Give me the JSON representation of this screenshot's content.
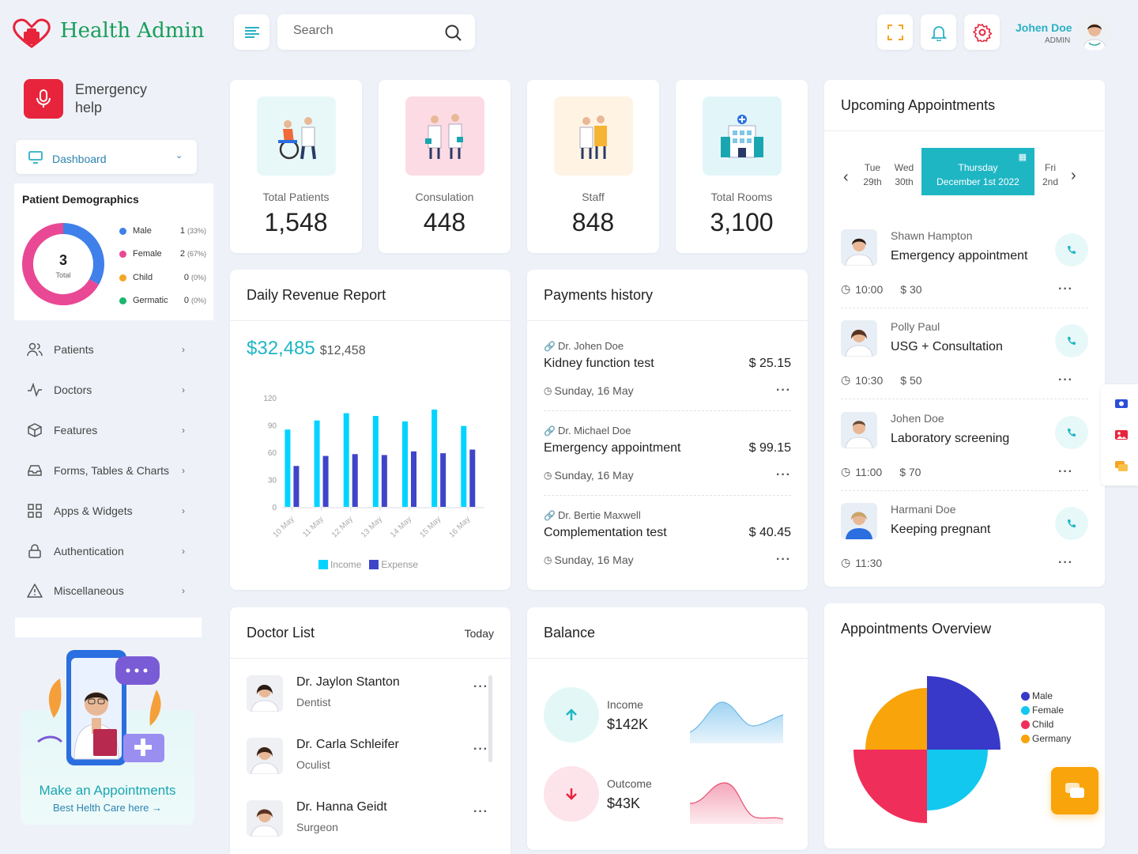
{
  "header": {
    "brand": "Health Admin",
    "search_placeholder": "Search",
    "user_name": "Johen Doe",
    "user_role": "ADMIN"
  },
  "sidebar": {
    "emergency": {
      "line1": "Emergency",
      "line2": "help"
    },
    "dashboard_label": "Dashboard",
    "demographics": {
      "title": "Patient Demographics",
      "total_value": "3",
      "total_label": "Total",
      "items": [
        {
          "name": "Male",
          "count": "1",
          "pct": "(33%)",
          "color": "#3f80ea"
        },
        {
          "name": "Female",
          "count": "2",
          "pct": "(67%)",
          "color": "#e94894"
        },
        {
          "name": "Child",
          "count": "0",
          "pct": "(0%)",
          "color": "#f5a524"
        },
        {
          "name": "Germatic",
          "count": "0",
          "pct": "(0%)",
          "color": "#1ab66f"
        }
      ],
      "share": [
        0.333,
        0.667
      ]
    },
    "nav": [
      "Patients",
      "Doctors",
      "Features",
      "Forms, Tables & Charts",
      "Apps & Widgets",
      "Authentication",
      "Miscellaneous"
    ],
    "promo": {
      "title": "Make an Appointments",
      "link": "Best Helth Care here"
    }
  },
  "stats": [
    {
      "label": "Total Patients",
      "value": "1,548",
      "bg": "#e8f8f8"
    },
    {
      "label": "Consulation",
      "value": "448",
      "bg": "#fddbe4"
    },
    {
      "label": "Staff",
      "value": "848",
      "bg": "#fff4e4"
    },
    {
      "label": "Total Rooms",
      "value": "3,100",
      "bg": "#e2f6fa"
    }
  ],
  "revenue": {
    "title": "Daily Revenue Report",
    "main": "$32,485",
    "secondary": "$12,458"
  },
  "chart_data": {
    "type": "bar",
    "categories": [
      "10 May",
      "11 May",
      "12 May",
      "13 May",
      "14 May",
      "15 May",
      "16 May"
    ],
    "series": [
      {
        "name": "Income",
        "values": [
          85,
          95,
          103,
          100,
          94,
          107,
          89
        ],
        "color": "#00d4ff"
      },
      {
        "name": "Expense",
        "values": [
          45,
          56,
          58,
          57,
          61,
          59,
          63
        ],
        "color": "#3f45c8"
      }
    ],
    "yticks": [
      "120",
      "90",
      "60",
      "30",
      "0"
    ],
    "ylim": [
      0,
      120
    ],
    "legend": "bottom"
  },
  "payments": {
    "title": "Payments history",
    "items": [
      {
        "doctor": "Dr. Johen Doe",
        "test": "Kidney function test",
        "amount": "$ 25.15",
        "date": "Sunday, 16 May"
      },
      {
        "doctor": "Dr. Michael Doe",
        "test": "Emergency appointment",
        "amount": "$ 99.15",
        "date": "Sunday, 16 May"
      },
      {
        "doctor": "Dr. Bertie Maxwell",
        "test": "Complementation test",
        "amount": "$ 40.45",
        "date": "Sunday, 16 May"
      }
    ]
  },
  "appointments": {
    "title": "Upcoming Appointments",
    "days": [
      {
        "d": "Tue",
        "n": "29th"
      },
      {
        "d": "Wed",
        "n": "30th"
      },
      {
        "d": "Thursday",
        "n": "December 1st 2022"
      },
      {
        "d": "Fri",
        "n": "2nd"
      }
    ],
    "items": [
      {
        "name": "Shawn Hampton",
        "title": "Emergency appointment",
        "time": "10:00",
        "price": "$ 30"
      },
      {
        "name": "Polly Paul",
        "title": "USG + Consultation",
        "time": "10:30",
        "price": "$ 50"
      },
      {
        "name": "Johen Doe",
        "title": "Laboratory screening",
        "time": "11:00",
        "price": "$ 70"
      },
      {
        "name": "Harmani Doe",
        "title": "Keeping pregnant",
        "time": "11:30",
        "price": ""
      }
    ]
  },
  "doctors": {
    "title": "Doctor List",
    "filter": "Today",
    "items": [
      {
        "name": "Dr. Jaylon Stanton",
        "spec": "Dentist"
      },
      {
        "name": "Dr. Carla Schleifer",
        "spec": "Oculist"
      },
      {
        "name": "Dr. Hanna Geidt",
        "spec": "Surgeon"
      }
    ]
  },
  "balance": {
    "title": "Balance",
    "income_label": "Income",
    "income_value": "$142K",
    "outcome_label": "Outcome",
    "outcome_value": "$43K"
  },
  "overview": {
    "title": "Appointments Overview",
    "legend": [
      {
        "name": "Male",
        "color": "#3838c9"
      },
      {
        "name": "Female",
        "color": "#12c8ef"
      },
      {
        "name": "Child",
        "color": "#ef2e5a"
      },
      {
        "name": "Germany",
        "color": "#f9a40a"
      }
    ]
  }
}
